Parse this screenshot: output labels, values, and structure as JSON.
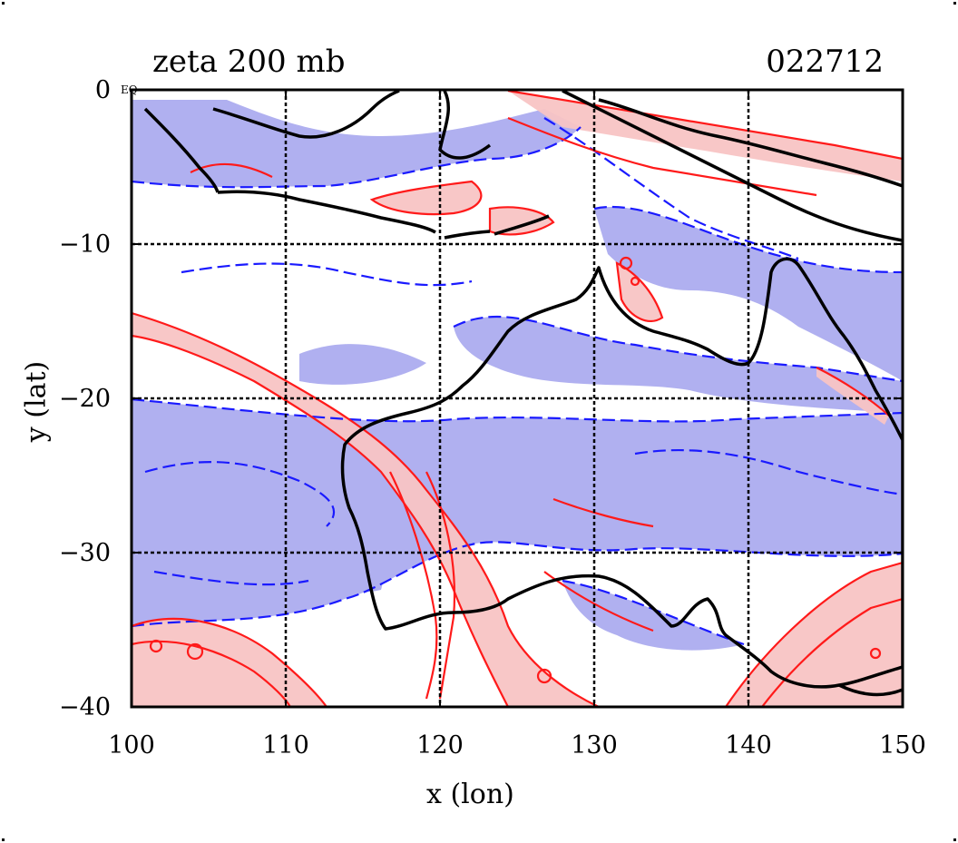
{
  "title": "zeta 200 mb",
  "date_code": "022712",
  "eq_label": "EQ",
  "x_axis": {
    "label": "x (lon)",
    "ticks": [
      "100",
      "110",
      "120",
      "130",
      "140",
      "150"
    ]
  },
  "y_axis": {
    "label": "y (lat)",
    "ticks": [
      "0",
      "−10",
      "−20",
      "−30",
      "−40"
    ]
  },
  "map": {
    "lon_range": [
      100,
      150
    ],
    "lat_range": [
      -40,
      0
    ],
    "grid_lons": [
      110,
      120,
      130,
      140
    ],
    "grid_lats": [
      -10,
      -20,
      -30
    ],
    "colors": {
      "positive_fill": "#f8c4c4",
      "positive_contour": "#ff1a1a",
      "negative_fill": "#b0b0f0",
      "negative_contour": "#1a1aff",
      "coastline": "#000000",
      "gridline": "#000000"
    }
  }
}
